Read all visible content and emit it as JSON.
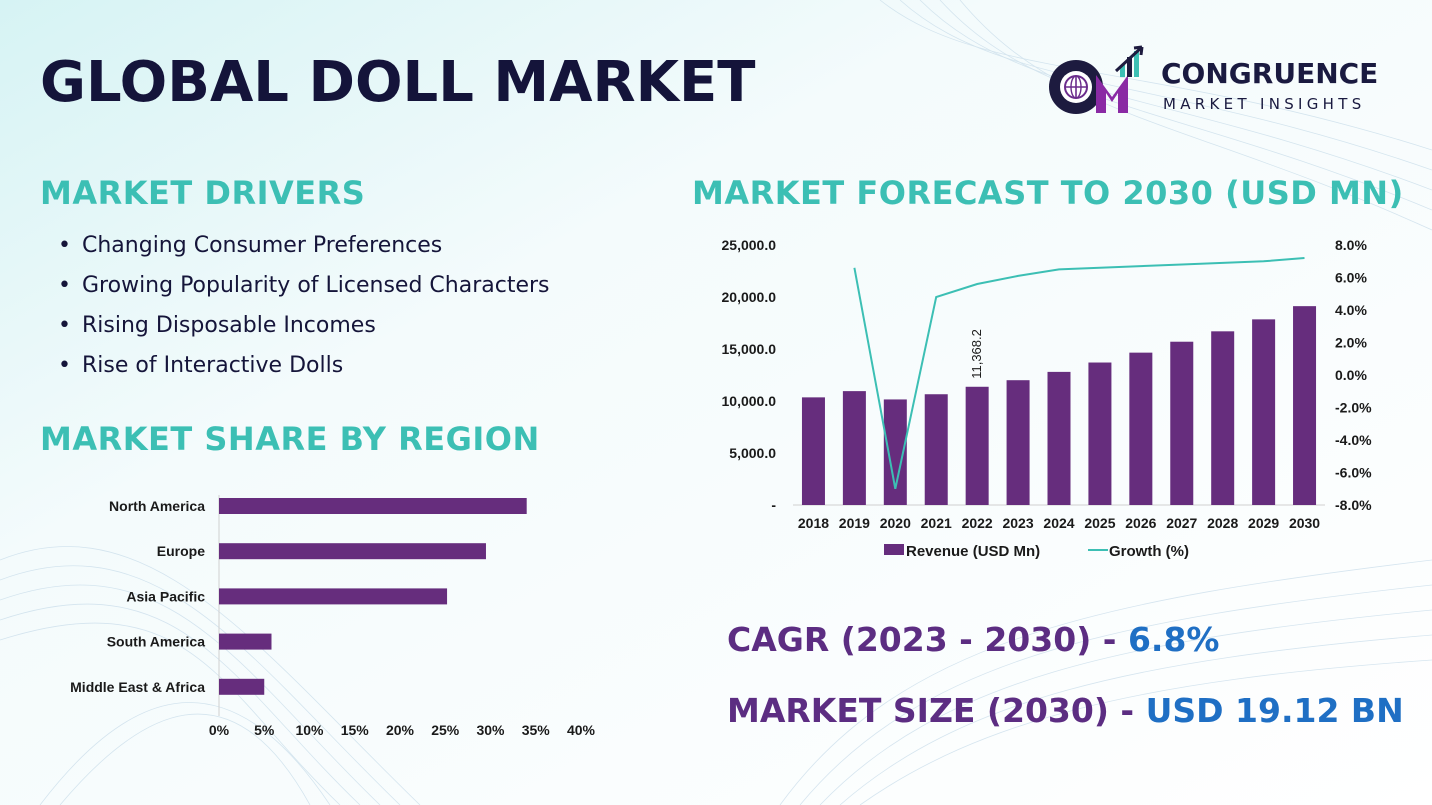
{
  "title": "GLOBAL DOLL MARKET",
  "logo": {
    "name": "CONGRUENCE",
    "tagline": "MARKET INSIGHTS",
    "icon": "cmi-logo-icon"
  },
  "colors": {
    "title": "#14143a",
    "section_title": "#3cbfb4",
    "bar": "#662d7d",
    "line": "#3cbfb4",
    "stat_label": "#5c2d82",
    "stat_value": "#1f6fc4"
  },
  "drivers": {
    "title": "MARKET DRIVERS",
    "bullet": "•",
    "items": [
      "Changing Consumer Preferences",
      "Growing Popularity of Licensed Characters",
      "Rising Disposable Incomes",
      "Rise of Interactive Dolls"
    ]
  },
  "region": {
    "title": "MARKET SHARE BY REGION"
  },
  "forecast": {
    "title": "MARKET FORECAST TO 2030 (USD MN)"
  },
  "stats": {
    "cagr_label": "CAGR (2023 - 2030)",
    "cagr_sep": " - ",
    "cagr_value": "6.8%",
    "size_label": "MARKET SIZE (2030)",
    "size_sep": " - ",
    "size_value": "USD 19.12 BN"
  },
  "chart_data": [
    {
      "type": "bar",
      "orientation": "horizontal",
      "categories": [
        "North America",
        "Europe",
        "Asia Pacific",
        "South America",
        "Middle East & Africa"
      ],
      "values": [
        34,
        29.5,
        25.2,
        5.8,
        5.0
      ],
      "xlim": [
        0,
        40
      ],
      "x_ticks": [
        0,
        5,
        10,
        15,
        20,
        25,
        30,
        35,
        40
      ],
      "x_tick_labels": [
        "0%",
        "5%",
        "10%",
        "15%",
        "20%",
        "25%",
        "30%",
        "35%",
        "40%"
      ],
      "grid": false
    },
    {
      "type": "bar",
      "categories": [
        "2018",
        "2019",
        "2020",
        "2021",
        "2022",
        "2023",
        "2024",
        "2025",
        "2026",
        "2027",
        "2028",
        "2029",
        "2030"
      ],
      "series": [
        {
          "name": "Revenue (USD Mn)",
          "kind": "bar",
          "axis": "left",
          "values": [
            10350,
            10950,
            10150,
            10650,
            11368.2,
            12000,
            12800,
            13700,
            14650,
            15700,
            16700,
            17850,
            19120
          ]
        },
        {
          "name": "Growth (%)",
          "kind": "line",
          "axis": "right",
          "values": [
            null,
            6.6,
            -7.0,
            4.8,
            5.6,
            6.1,
            6.5,
            6.6,
            6.7,
            6.8,
            6.9,
            7.0,
            7.2
          ]
        }
      ],
      "data_labels": [
        {
          "index": 4,
          "text": "11,368.2"
        }
      ],
      "ylim": [
        0,
        25000
      ],
      "y_ticks": [
        0,
        5000,
        10000,
        15000,
        20000,
        25000
      ],
      "y_tick_labels": [
        "-",
        "5,000.0",
        "10,000.0",
        "15,000.0",
        "20,000.0",
        "25,000.0"
      ],
      "y2lim": [
        -8,
        8
      ],
      "y2_ticks": [
        -8,
        -6,
        -4,
        -2,
        0,
        2,
        4,
        6,
        8
      ],
      "y2_tick_labels": [
        "-8.0%",
        "-6.0%",
        "-4.0%",
        "-2.0%",
        "0.0%",
        "2.0%",
        "4.0%",
        "6.0%",
        "8.0%"
      ],
      "legend": "bottom",
      "grid": false
    }
  ]
}
